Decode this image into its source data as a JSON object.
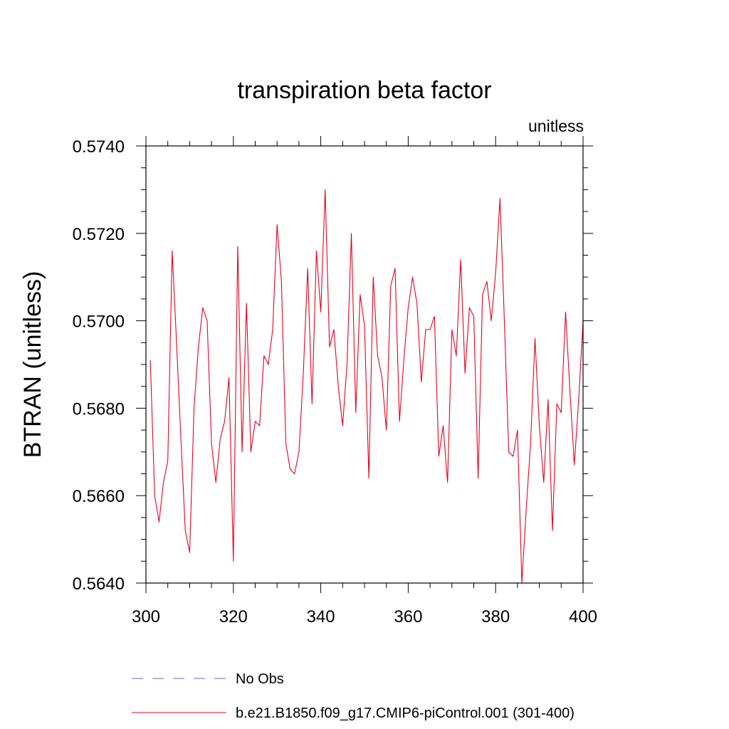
{
  "chart_data": {
    "type": "line",
    "title": "transpiration beta factor",
    "units_label": "unitless",
    "ylabel": "BTRAN  (unitless)",
    "xlabel": "",
    "xlim": [
      300,
      400
    ],
    "ylim": [
      0.564,
      0.574
    ],
    "x_ticks": [
      300,
      320,
      340,
      360,
      380,
      400
    ],
    "y_ticks": [
      "0.5640",
      "0.5660",
      "0.5680",
      "0.5700",
      "0.5720",
      "0.5740"
    ],
    "legend": [
      {
        "name": "No Obs",
        "style": "dashed",
        "color": "#8c7fd9"
      },
      {
        "name": "b.e21.B1850.f09_g17.CMIP6-piControl.001 (301-400)",
        "style": "solid",
        "color": "#e8001c"
      }
    ],
    "series": [
      {
        "name": "b.e21.B1850.f09_g17.CMIP6-piControl.001 (301-400)",
        "color": "#e8001c",
        "x": [
          301,
          302,
          303,
          304,
          305,
          306,
          307,
          308,
          309,
          310,
          311,
          312,
          313,
          314,
          315,
          316,
          317,
          318,
          319,
          320,
          321,
          322,
          323,
          324,
          325,
          326,
          327,
          328,
          329,
          330,
          331,
          332,
          333,
          334,
          335,
          336,
          337,
          338,
          339,
          340,
          341,
          342,
          343,
          344,
          345,
          346,
          347,
          348,
          349,
          350,
          351,
          352,
          353,
          354,
          355,
          356,
          357,
          358,
          359,
          360,
          361,
          362,
          363,
          364,
          365,
          366,
          367,
          368,
          369,
          370,
          371,
          372,
          373,
          374,
          375,
          376,
          377,
          378,
          379,
          380,
          381,
          382,
          383,
          384,
          385,
          386,
          387,
          388,
          389,
          390,
          391,
          392,
          393,
          394,
          395,
          396,
          397,
          398,
          399,
          400
        ],
        "values": [
          0.5691,
          0.566,
          0.5654,
          0.5663,
          0.5668,
          0.5716,
          0.5695,
          0.5673,
          0.5652,
          0.5647,
          0.568,
          0.5694,
          0.5703,
          0.57,
          0.5672,
          0.5663,
          0.5673,
          0.5677,
          0.5687,
          0.5645,
          0.5717,
          0.567,
          0.5704,
          0.567,
          0.5677,
          0.5676,
          0.5692,
          0.569,
          0.5698,
          0.5722,
          0.5709,
          0.5672,
          0.5666,
          0.5665,
          0.567,
          0.5688,
          0.5712,
          0.5681,
          0.5716,
          0.5702,
          0.573,
          0.5694,
          0.5698,
          0.5685,
          0.5676,
          0.569,
          0.572,
          0.5679,
          0.5706,
          0.5699,
          0.5664,
          0.571,
          0.5692,
          0.5687,
          0.5675,
          0.5708,
          0.5712,
          0.5677,
          0.5691,
          0.5703,
          0.571,
          0.5704,
          0.5686,
          0.5698,
          0.5698,
          0.5701,
          0.5669,
          0.5676,
          0.5663,
          0.5698,
          0.5692,
          0.5714,
          0.5688,
          0.5703,
          0.5701,
          0.5664,
          0.5706,
          0.5709,
          0.57,
          0.5711,
          0.5728,
          0.57,
          0.567,
          0.5669,
          0.5675,
          0.564,
          0.5657,
          0.5672,
          0.5696,
          0.5676,
          0.5663,
          0.5682,
          0.5652,
          0.5681,
          0.5679,
          0.5702,
          0.5684,
          0.5667,
          0.5682,
          0.57
        ]
      }
    ]
  }
}
